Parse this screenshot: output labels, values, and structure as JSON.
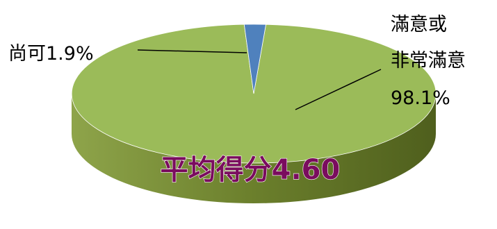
{
  "chart_data": {
    "type": "pie",
    "style": "3d",
    "categories": [
      "滿意或非常滿意",
      "尚可"
    ],
    "values": [
      98.1,
      1.9
    ],
    "colors": [
      "#9bbb59",
      "#4f81bd"
    ],
    "side_color": "#6b7f2c",
    "labels": {
      "satisfied_line1": "滿意或",
      "satisfied_line2": "非常滿意",
      "satisfied_value": "98.1%",
      "neutral": "尚可1.9%"
    },
    "center_text": "平均得分4.60"
  }
}
